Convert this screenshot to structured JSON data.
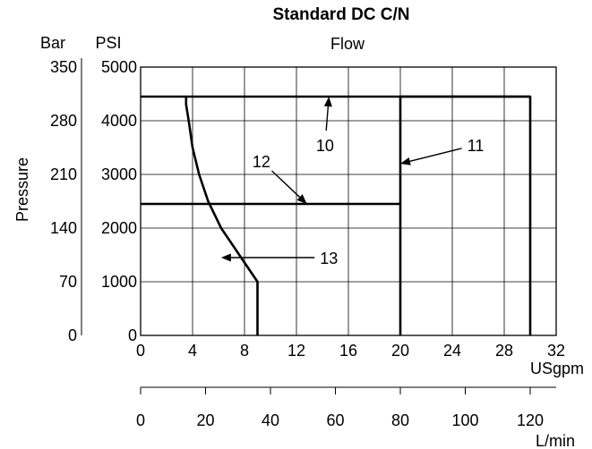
{
  "chart_data": {
    "type": "line",
    "title": "Standard DC C/N",
    "subtitle": "Flow",
    "ylabel": "Pressure",
    "y_unit_bar": "Bar",
    "y_unit_psi": "PSI",
    "xlabel_usgpm": "USgpm",
    "xlabel_lmin": "L/min",
    "xlim": [
      0,
      32
    ],
    "ylim": [
      0,
      5000
    ],
    "x_ticks": [
      "0",
      "4",
      "8",
      "12",
      "16",
      "20",
      "24",
      "28",
      "32"
    ],
    "x_tick_values": [
      0,
      4,
      8,
      12,
      16,
      20,
      24,
      28,
      32
    ],
    "y_ticks_psi": [
      "0",
      "1000",
      "2000",
      "3000",
      "4000",
      "5000"
    ],
    "y_tick_values_psi": [
      0,
      1000,
      2000,
      3000,
      4000,
      5000
    ],
    "y_ticks_bar": [
      "0",
      "70",
      "140",
      "210",
      "280",
      "350"
    ],
    "y_tick_values_bar": [
      0,
      70,
      140,
      210,
      280,
      350
    ],
    "lmin_ticks": [
      "0",
      "20",
      "40",
      "60",
      "80",
      "100",
      "120"
    ],
    "lmin_tick_values": [
      0,
      20,
      40,
      60,
      80,
      100,
      120
    ],
    "lmin_range": [
      0,
      128
    ],
    "grid": true,
    "series": [
      {
        "name": "10",
        "x": [
          0,
          30
        ],
        "y": [
          4450,
          4450
        ]
      },
      {
        "name": "11",
        "x": [
          20,
          20,
          30,
          30
        ],
        "y": [
          0,
          4450,
          4450,
          0
        ]
      },
      {
        "name": "12",
        "x": [
          0,
          20
        ],
        "y": [
          2450,
          2450
        ]
      },
      {
        "name": "13",
        "x": [
          9,
          9,
          7.6,
          6.2,
          5.2,
          4.5,
          4.0,
          3.7,
          3.5,
          3.5
        ],
        "y": [
          0,
          1000,
          1500,
          2000,
          2500,
          3000,
          3500,
          4000,
          4300,
          4450
        ]
      }
    ],
    "annotations": [
      {
        "label": "10",
        "text_x": 14.2,
        "text_y": 3550,
        "tip_x": 14.5,
        "tip_y": 4450
      },
      {
        "label": "11",
        "text_x": 25.8,
        "text_y": 3550,
        "tip_x": 20,
        "tip_y": 3200
      },
      {
        "label": "12",
        "text_x": 9.3,
        "text_y": 3250,
        "tip_x": 12.8,
        "tip_y": 2450
      },
      {
        "label": "13",
        "text_x": 14.5,
        "text_y": 1450,
        "tip_x": 6.2,
        "tip_y": 1450
      }
    ]
  }
}
